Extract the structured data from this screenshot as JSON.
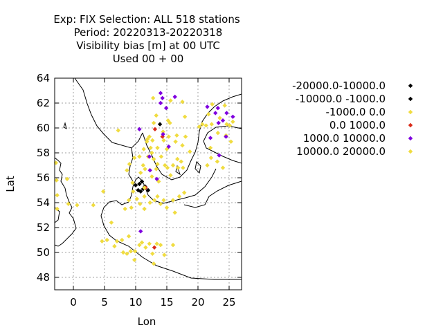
{
  "chart_data": {
    "type": "scatter",
    "title_lines": [
      "Exp: FIX   Selection: ALL    518 stations",
      "Period: 20220313-20220318",
      "Visibility bias [m] at  00 UTC",
      "Used  00 + 00"
    ],
    "xlabel": "Lon",
    "ylabel": "Lat",
    "xlim": [
      -3,
      27
    ],
    "ylim": [
      47,
      64
    ],
    "xticks": [
      "0",
      "5",
      "10",
      "15",
      "20",
      "25"
    ],
    "yticks": [
      "48",
      "50",
      "52",
      "54",
      "56",
      "58",
      "60",
      "62",
      "64"
    ],
    "grid": true,
    "legend_position": "right",
    "series": [
      {
        "name": "-20000.0-10000.0",
        "color": "#000000",
        "points": [
          [
            10.6,
            55.5
          ],
          [
            11.2,
            55.1
          ],
          [
            13.9,
            60.3
          ]
        ]
      },
      {
        "name": "-10000.0 -1000.0",
        "color": "#000000",
        "points": [
          [
            10.0,
            55.4
          ],
          [
            10.4,
            55.0
          ],
          [
            11.0,
            55.7
          ],
          [
            11.5,
            55.3
          ],
          [
            12.0,
            55.0
          ],
          [
            10.8,
            54.9
          ]
        ]
      },
      {
        "name": "-1000.0 0.0",
        "color": "#f0dc40",
        "points": [
          [
            -2.8,
            57.2
          ],
          [
            -2.7,
            55.8
          ],
          [
            -2.6,
            54.6
          ],
          [
            -2.6,
            53.5
          ],
          [
            -0.8,
            53.9
          ],
          [
            0.6,
            53.8
          ],
          [
            3.2,
            53.8
          ],
          [
            4.8,
            54.9
          ],
          [
            5.4,
            51.0
          ],
          [
            4.6,
            50.9
          ],
          [
            6.6,
            50.5
          ],
          [
            7.0,
            50.9
          ],
          [
            7.8,
            51.0
          ],
          [
            8.0,
            50.0
          ],
          [
            8.6,
            49.9
          ],
          [
            8.9,
            51.3
          ],
          [
            9.2,
            50.1
          ],
          [
            9.9,
            50.1
          ],
          [
            9.8,
            49.4
          ],
          [
            10.6,
            50.6
          ],
          [
            11.0,
            50.8
          ],
          [
            11.6,
            50.4
          ],
          [
            12.2,
            50.7
          ],
          [
            12.7,
            49.9
          ],
          [
            12.9,
            49.1
          ],
          [
            13.4,
            50.7
          ],
          [
            14.0,
            50.6
          ],
          [
            14.6,
            49.8
          ],
          [
            16.0,
            50.6
          ],
          [
            6.1,
            52.4
          ],
          [
            8.3,
            53.5
          ],
          [
            8.9,
            54.2
          ],
          [
            9.3,
            53.6
          ],
          [
            9.5,
            55.6
          ],
          [
            9.6,
            54.9
          ],
          [
            10.2,
            54.3
          ],
          [
            10.7,
            53.9
          ],
          [
            11.4,
            53.5
          ],
          [
            11.4,
            54.5
          ],
          [
            12.3,
            54.0
          ],
          [
            13.0,
            54.2
          ],
          [
            13.5,
            54.5
          ],
          [
            14.0,
            53.9
          ],
          [
            14.5,
            54.2
          ],
          [
            15.0,
            53.6
          ],
          [
            16.3,
            53.2
          ],
          [
            16.0,
            54.2
          ],
          [
            17.0,
            54.5
          ],
          [
            17.8,
            54.8
          ],
          [
            8.6,
            56.6
          ],
          [
            9.0,
            57.1
          ],
          [
            9.8,
            57.6
          ],
          [
            10.6,
            57.7
          ],
          [
            10.8,
            56.4
          ],
          [
            11.2,
            57.0
          ],
          [
            11.5,
            56.7
          ],
          [
            12.0,
            57.7
          ],
          [
            12.4,
            58.4
          ],
          [
            12.6,
            56.1
          ],
          [
            12.9,
            57.5
          ],
          [
            13.3,
            56.7
          ],
          [
            13.5,
            57.1
          ],
          [
            13.5,
            58.4
          ],
          [
            14.1,
            57.7
          ],
          [
            14.5,
            59.0
          ],
          [
            14.7,
            57.0
          ],
          [
            15.0,
            58.3
          ],
          [
            15.3,
            59.3
          ],
          [
            15.6,
            56.2
          ],
          [
            16.0,
            57.0
          ],
          [
            16.4,
            58.9
          ],
          [
            16.8,
            56.8
          ],
          [
            17.3,
            57.3
          ],
          [
            17.6,
            56.8
          ],
          [
            17.5,
            58.6
          ],
          [
            16.6,
            59.4
          ],
          [
            18.0,
            59.3
          ],
          [
            18.7,
            58.1
          ],
          [
            11.3,
            58.3
          ],
          [
            11.8,
            58.9
          ],
          [
            12.2,
            59.3
          ],
          [
            12.7,
            59.0
          ],
          [
            12.9,
            60.4
          ],
          [
            13.3,
            61.0
          ],
          [
            14.4,
            59.7
          ],
          [
            15.5,
            60.4
          ],
          [
            15.6,
            62.2
          ],
          [
            17.5,
            62.1
          ],
          [
            17.9,
            60.9
          ],
          [
            12.8,
            62.4
          ],
          [
            20.2,
            60.1
          ],
          [
            20.7,
            60.3
          ],
          [
            21.3,
            60.2
          ],
          [
            21.7,
            61.1
          ],
          [
            22.2,
            60.3
          ],
          [
            22.3,
            61.9
          ],
          [
            23.2,
            59.6
          ],
          [
            23.5,
            60.8
          ],
          [
            24.3,
            61.8
          ],
          [
            24.6,
            60.3
          ],
          [
            25.1,
            60.2
          ],
          [
            25.6,
            60.5
          ],
          [
            24.5,
            59.4
          ],
          [
            22.0,
            58.4
          ],
          [
            22.1,
            57.6
          ],
          [
            23.1,
            57.3
          ],
          [
            24.0,
            56.8
          ],
          [
            25.3,
            58.9
          ],
          [
            21.5,
            57.0
          ],
          [
            7.2,
            59.8
          ],
          [
            -1.0,
            55.9
          ],
          [
            15.2,
            60.6
          ],
          [
            11.9,
            59.1
          ],
          [
            13.7,
            55.7
          ]
        ]
      },
      {
        "name": "0.0 1000.0",
        "color": "#d92b1a",
        "points": [
          [
            13.1,
            59.9
          ],
          [
            14.3,
            59.3
          ],
          [
            11.6,
            55.2
          ],
          [
            13.0,
            50.4
          ]
        ]
      },
      {
        "name": "1000.0 10000.0",
        "color": "#7f00df",
        "points": [
          [
            10.6,
            59.9
          ],
          [
            12.3,
            56.6
          ],
          [
            12.2,
            57.7
          ],
          [
            13.4,
            55.9
          ],
          [
            14.0,
            62.8
          ],
          [
            14.3,
            62.4
          ],
          [
            14.0,
            62.0
          ],
          [
            14.9,
            61.6
          ],
          [
            16.3,
            62.5
          ],
          [
            14.4,
            59.5
          ],
          [
            15.3,
            58.5
          ],
          [
            21.5,
            61.7
          ],
          [
            22.8,
            61.2
          ],
          [
            23.3,
            60.4
          ],
          [
            22.0,
            59.2
          ],
          [
            24.0,
            60.6
          ],
          [
            24.6,
            61.2
          ],
          [
            24.5,
            59.3
          ],
          [
            23.4,
            57.8
          ],
          [
            25.6,
            60.9
          ],
          [
            23.2,
            61.6
          ],
          [
            10.8,
            51.7
          ]
        ]
      },
      {
        "name": "10000.0 20000.0",
        "color": "#f0dc40",
        "points": [
          [
            12.6,
            58.0
          ],
          [
            15.1,
            56.8
          ],
          [
            16.7,
            57.5
          ],
          [
            11.4,
            55.2
          ]
        ]
      }
    ]
  }
}
